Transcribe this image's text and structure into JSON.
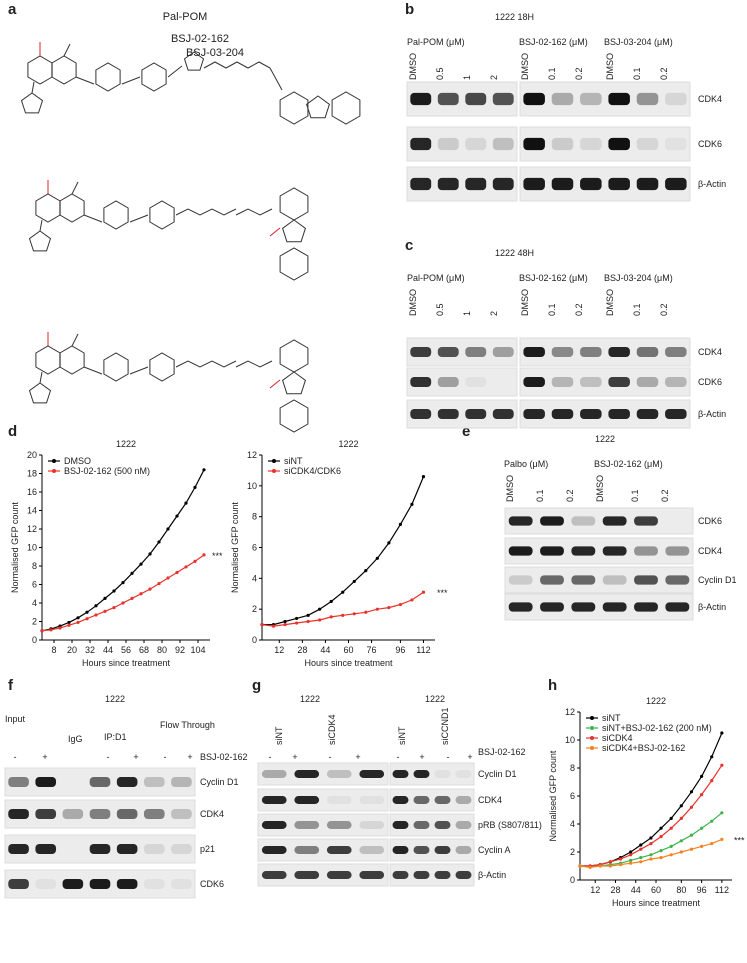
{
  "panels": {
    "a": {
      "label": "a",
      "compounds": [
        "Pal-POM",
        "BSJ-02-162",
        "BSJ-03-204"
      ]
    },
    "b": {
      "label": "b",
      "title": "1222 18H",
      "groups": [
        {
          "name": "Pal-POM (μM)",
          "lanes": [
            "DMSO",
            "0.5",
            "1",
            "2"
          ]
        },
        {
          "name": "BSJ-02-162 (μM)",
          "lanes": [
            "DMSO",
            "0.1",
            "0.2"
          ]
        },
        {
          "name": "BSJ-03-204 (μM)",
          "lanes": [
            "DMSO",
            "0.1",
            "0.2"
          ]
        }
      ],
      "rows": [
        "CDK4",
        "CDK6",
        "β-Actin"
      ]
    },
    "c": {
      "label": "c",
      "title": "1222 48H",
      "groups": [
        {
          "name": "Pal-POM (μM)",
          "lanes": [
            "DMSO",
            "0.5",
            "1",
            "2"
          ]
        },
        {
          "name": "BSJ-02-162 (μM)",
          "lanes": [
            "DMSO",
            "0.1",
            "0.2"
          ]
        },
        {
          "name": "BSJ-03-204 (μM)",
          "lanes": [
            "DMSO",
            "0.1",
            "0.2"
          ]
        }
      ],
      "rows": [
        "CDK4",
        "CDK6",
        "β-Actin"
      ]
    },
    "d": {
      "label": "d"
    },
    "e": {
      "label": "e",
      "title": "1222",
      "groups": [
        {
          "name": "Palbo (μM)",
          "lanes": [
            "DMSO",
            "0.1",
            "0.2"
          ]
        },
        {
          "name": "BSJ-02-162 (μM)",
          "lanes": [
            "DMSO",
            "0.1",
            "0.2"
          ]
        }
      ],
      "rows": [
        "CDK6",
        "CDK4",
        "Cyclin D1",
        "β-Actin"
      ]
    },
    "f": {
      "label": "f",
      "title": "1222",
      "groups": [
        "Input",
        "IgG",
        "IP:D1",
        "Flow Through"
      ],
      "lanes": [
        "-",
        "+",
        "-",
        "+",
        "-",
        "+"
      ],
      "treatment": "BSJ-02-162",
      "rows": [
        "Cyclin D1",
        "CDK4",
        "p21",
        "CDK6"
      ]
    },
    "g": {
      "label": "g",
      "titles": [
        "1222",
        "1222"
      ],
      "lanes": [
        "siNT",
        "siCDK4",
        "siNT",
        "siCCND1"
      ],
      "signs": [
        "-",
        "+",
        "-",
        "+",
        "-",
        "+",
        "-",
        "+"
      ],
      "treatment": "BSJ-02-162",
      "rows": [
        "Cyclin D1",
        "CDK4",
        "pRB (S807/811)",
        "Cyclin A",
        "β-Actin"
      ]
    },
    "h": {
      "label": "h"
    }
  },
  "chart_data": [
    {
      "type": "line",
      "title": "1222",
      "xlabel": "Hours since treatment",
      "ylabel": "Normalised GFP count",
      "annotation": "***",
      "legend": "upper left",
      "x": [
        0,
        6,
        12,
        18,
        24,
        30,
        36,
        42,
        48,
        54,
        60,
        66,
        72,
        78,
        84,
        90,
        96,
        102,
        108
      ],
      "xlim": [
        0,
        112
      ],
      "xticks": [
        8,
        20,
        32,
        44,
        56,
        68,
        80,
        92,
        104
      ],
      "ylim": [
        0,
        20
      ],
      "yticks": [
        0,
        2,
        4,
        6,
        8,
        10,
        12,
        14,
        16,
        18,
        20
      ],
      "series": [
        {
          "name": "DMSO",
          "color": "#000000",
          "values": [
            1,
            1.2,
            1.5,
            1.9,
            2.4,
            3.0,
            3.7,
            4.5,
            5.3,
            6.2,
            7.2,
            8.2,
            9.3,
            10.6,
            12.0,
            13.4,
            14.8,
            16.5,
            18.4
          ]
        },
        {
          "name": "BSJ-02-162 (500 nM)",
          "color": "#e8322c",
          "values": [
            1,
            1.1,
            1.3,
            1.6,
            1.9,
            2.3,
            2.7,
            3.1,
            3.5,
            4.0,
            4.5,
            5.0,
            5.5,
            6.1,
            6.7,
            7.3,
            7.9,
            8.5,
            9.2
          ]
        }
      ]
    },
    {
      "type": "line",
      "title": "1222",
      "xlabel": "Hours since treatment",
      "ylabel": "Normalised GFP count",
      "annotation": "***",
      "legend": "upper left",
      "x": [
        0,
        8,
        16,
        24,
        32,
        40,
        48,
        56,
        64,
        72,
        80,
        88,
        96,
        104,
        112
      ],
      "xlim": [
        0,
        120
      ],
      "xticks": [
        12,
        28,
        44,
        60,
        76,
        96,
        112
      ],
      "ylim": [
        0,
        12
      ],
      "yticks": [
        0,
        2,
        4,
        6,
        8,
        10,
        12
      ],
      "series": [
        {
          "name": "siNT",
          "color": "#000000",
          "values": [
            1,
            1.0,
            1.2,
            1.4,
            1.6,
            2.0,
            2.5,
            3.1,
            3.8,
            4.5,
            5.3,
            6.3,
            7.5,
            8.8,
            10.6
          ]
        },
        {
          "name": "siCDK4/CDK6",
          "color": "#e8322c",
          "values": [
            1,
            0.9,
            1.0,
            1.1,
            1.2,
            1.3,
            1.5,
            1.6,
            1.7,
            1.8,
            2.0,
            2.1,
            2.3,
            2.6,
            3.1
          ]
        }
      ]
    },
    {
      "type": "line",
      "title": "1222",
      "xlabel": "Hours since treatment",
      "ylabel": "Normalised GFP count",
      "annotation": "***",
      "legend": "upper left",
      "x": [
        0,
        8,
        16,
        24,
        32,
        40,
        48,
        56,
        64,
        72,
        80,
        88,
        96,
        104,
        112
      ],
      "xlim": [
        0,
        120
      ],
      "xticks": [
        12,
        28,
        44,
        60,
        80,
        96,
        112
      ],
      "ylim": [
        0,
        12
      ],
      "yticks": [
        0,
        2,
        4,
        6,
        8,
        10,
        12
      ],
      "series": [
        {
          "name": "siNT",
          "color": "#000000",
          "values": [
            1,
            1.0,
            1.1,
            1.3,
            1.6,
            2.0,
            2.5,
            3.0,
            3.7,
            4.4,
            5.3,
            6.3,
            7.4,
            8.8,
            10.5
          ]
        },
        {
          "name": "siNT+BSJ-02-162 (200 nM)",
          "color": "#3cb44b",
          "values": [
            1,
            1.0,
            1.0,
            1.1,
            1.2,
            1.4,
            1.6,
            1.8,
            2.1,
            2.4,
            2.8,
            3.2,
            3.7,
            4.2,
            4.8
          ]
        },
        {
          "name": "siCDK4",
          "color": "#e8322c",
          "values": [
            1,
            1.0,
            1.1,
            1.3,
            1.5,
            1.8,
            2.2,
            2.6,
            3.1,
            3.7,
            4.4,
            5.2,
            6.1,
            7.1,
            8.2
          ]
        },
        {
          "name": "siCDK4+BSJ-02-162",
          "color": "#f58220",
          "values": [
            1,
            0.9,
            1.0,
            1.0,
            1.1,
            1.2,
            1.3,
            1.5,
            1.6,
            1.8,
            2.0,
            2.2,
            2.4,
            2.6,
            2.9
          ]
        }
      ]
    }
  ]
}
